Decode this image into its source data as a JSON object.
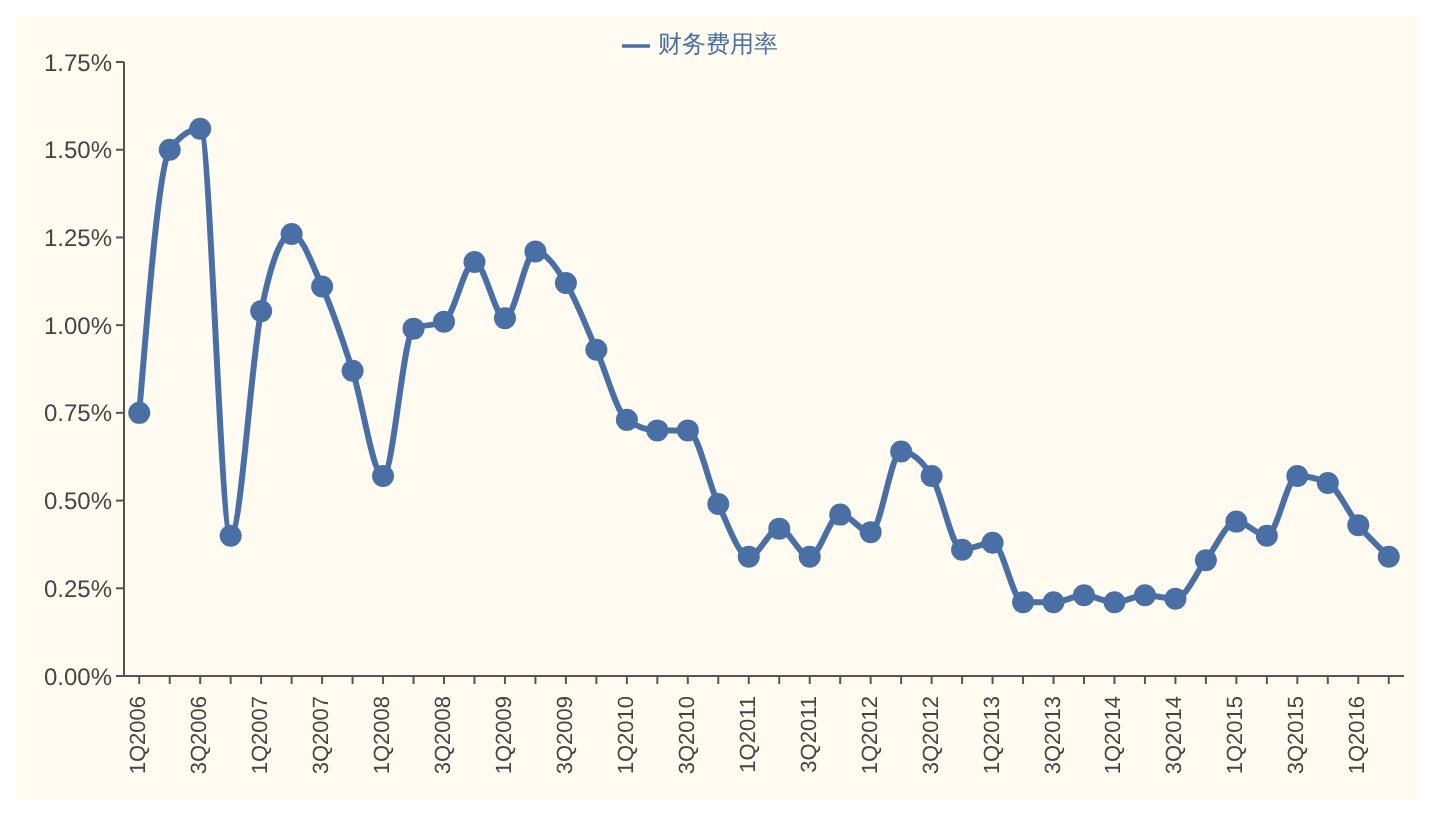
{
  "chart_data": {
    "type": "line",
    "categories": [
      "1Q2006",
      null,
      "3Q2006",
      null,
      "1Q2007",
      null,
      "3Q2007",
      null,
      "1Q2008",
      null,
      "3Q2008",
      null,
      "1Q2009",
      null,
      "3Q2009",
      null,
      "1Q2010",
      null,
      "3Q2010",
      null,
      "1Q2011",
      null,
      "3Q2011",
      null,
      "1Q2012",
      null,
      "3Q2012",
      null,
      "1Q2013",
      null,
      "3Q2013",
      null,
      "1Q2014",
      null,
      "3Q2014",
      null,
      "1Q2015",
      null,
      "3Q2015",
      null,
      "1Q2016",
      null
    ],
    "series": [
      {
        "name": "财务费用率",
        "color": "#4a6fa5",
        "values": [
          0.75,
          1.5,
          1.56,
          0.4,
          1.04,
          1.26,
          1.11,
          0.87,
          0.57,
          0.99,
          1.01,
          1.18,
          1.02,
          1.21,
          1.12,
          0.93,
          0.73,
          0.7,
          0.7,
          0.49,
          0.34,
          0.42,
          0.34,
          0.46,
          0.41,
          0.64,
          0.57,
          0.36,
          0.38,
          0.21,
          0.21,
          0.23,
          0.21,
          0.23,
          0.22,
          0.33,
          0.44,
          0.4,
          0.57,
          0.55,
          0.43,
          0.34
        ]
      }
    ],
    "ylim": [
      0,
      1.75
    ],
    "yticks": [
      {
        "value": 0,
        "label": "0.00%"
      },
      {
        "value": 0.25,
        "label": "0.25%"
      },
      {
        "value": 0.5,
        "label": "0.50%"
      },
      {
        "value": 0.75,
        "label": "0.75%"
      },
      {
        "value": 1,
        "label": "1.00%"
      },
      {
        "value": 1.25,
        "label": "1.25%"
      },
      {
        "value": 1.5,
        "label": "1.50%"
      },
      {
        "value": 1.75,
        "label": "1.75%"
      }
    ],
    "legend": "top",
    "grid": false,
    "marker": "circle",
    "line_style": "solid"
  }
}
